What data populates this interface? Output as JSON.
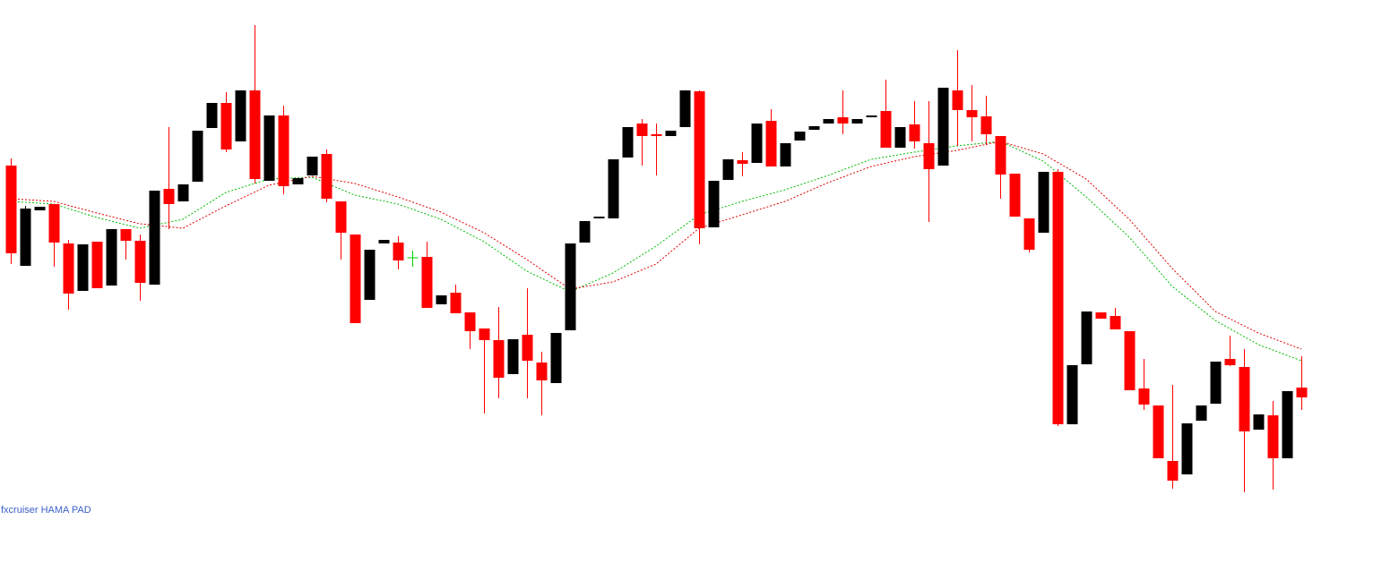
{
  "chart_data": {
    "type": "candlestick",
    "annotation": "fxcruiser HAMA PAD",
    "x": [
      0,
      1,
      2,
      3,
      4,
      5,
      6,
      7,
      8,
      9,
      10,
      11,
      12,
      13,
      14,
      15,
      16,
      17,
      18,
      19,
      20,
      21,
      22,
      23,
      24,
      25,
      26,
      27,
      28,
      29,
      30,
      31,
      32,
      33,
      34,
      35,
      36,
      37,
      38,
      39,
      40,
      41,
      42,
      43,
      44,
      45,
      46,
      47,
      48,
      49,
      50,
      51,
      52,
      53,
      54,
      55,
      56,
      57,
      58,
      59,
      60,
      61,
      62,
      63,
      64,
      65,
      66,
      67,
      68,
      69,
      70,
      71,
      72,
      73,
      74,
      75,
      76,
      77,
      78,
      79,
      80,
      81,
      82,
      83,
      84,
      85,
      86,
      87,
      88,
      89,
      90
    ],
    "open": [
      444,
      332,
      394,
      401,
      357,
      304,
      359,
      310,
      373,
      360,
      311,
      418,
      404,
      426,
      486,
      514,
      471,
      528,
      427,
      500,
      423,
      433,
      457,
      404,
      367,
      294,
      357,
      358,
      341,
      342,
      289,
      302,
      280,
      262,
      249,
      211,
      255,
      224,
      201,
      260,
      358,
      385,
      385,
      453,
      491,
      479,
      477,
      487,
      527,
      375,
      428,
      450,
      447,
      494,
      443,
      472,
      484,
      491,
      498,
      491,
      498,
      505,
      464,
      490,
      469,
      444,
      528,
      506,
      499,
      477,
      435,
      385,
      369,
      437,
      155,
      222,
      280,
      276,
      259,
      195,
      176,
      114,
      99,
      159,
      178,
      228,
      219,
      149,
      165,
      117,
      196
    ],
    "high": [
      452,
      399,
      398,
      401,
      361,
      356,
      359,
      373,
      373,
      367,
      416,
      487,
      423,
      483,
      514,
      526,
      528,
      601,
      500,
      511,
      430,
      454,
      462,
      404,
      367,
      350,
      361,
      365,
      349,
      359,
      299,
      311,
      280,
      262,
      286,
      250,
      307,
      236,
      257,
      357,
      382,
      387,
      451,
      487,
      496,
      491,
      483,
      528,
      528,
      427,
      451,
      459,
      491,
      507,
      469,
      482,
      488,
      496,
      528,
      496,
      500,
      540,
      487,
      516,
      516,
      531,
      573,
      534,
      522,
      477,
      435,
      385,
      437,
      440,
      221,
      281,
      280,
      285,
      259,
      228,
      176,
      199,
      156,
      176,
      225,
      254,
      239,
      166,
      181,
      192,
      231
    ],
    "low": [
      334,
      332,
      394,
      331,
      283,
      304,
      307,
      310,
      339,
      293,
      311,
      373,
      404,
      426,
      486,
      459,
      471,
      424,
      427,
      412,
      423,
      433,
      403,
      339,
      268,
      294,
      357,
      328,
      331,
      285,
      289,
      279,
      239,
      167,
      184,
      211,
      184,
      165,
      201,
      260,
      358,
      385,
      385,
      453,
      444,
      433,
      477,
      487,
      356,
      375,
      428,
      432,
      447,
      443,
      443,
      472,
      484,
      491,
      479,
      491,
      498,
      464,
      464,
      463,
      381,
      444,
      466,
      471,
      467,
      407,
      387,
      347,
      369,
      153,
      155,
      222,
      273,
      261,
      193,
      171,
      117,
      83,
      99,
      159,
      178,
      220,
      79,
      149,
      82,
      117,
      171
    ],
    "close": [
      346,
      396,
      398,
      358,
      301,
      356,
      307,
      373,
      360,
      313,
      416,
      401,
      423,
      483,
      514,
      462,
      528,
      429,
      500,
      421,
      430,
      454,
      407,
      369,
      268,
      350,
      361,
      338,
      341,
      285,
      299,
      279,
      259,
      249,
      207,
      250,
      226,
      204,
      257,
      357,
      382,
      387,
      451,
      487,
      477,
      477,
      483,
      528,
      374,
      427,
      451,
      446,
      491,
      443,
      469,
      482,
      488,
      496,
      491,
      496,
      500,
      464,
      487,
      471,
      440,
      531,
      506,
      498,
      479,
      434,
      387,
      350,
      437,
      155,
      221,
      281,
      273,
      261,
      193,
      177,
      117,
      92,
      156,
      176,
      225,
      221,
      147,
      166,
      117,
      192,
      185
    ],
    "up_color": "#000000",
    "down_color": "#ff0000",
    "doji_color": "#00cc00",
    "series": [
      {
        "color": "#00bb00",
        "x": [
          0,
          3,
          6,
          9,
          12,
          15,
          18,
          21,
          24,
          27,
          30,
          33,
          36,
          39,
          42,
          45,
          48,
          51,
          54,
          57,
          60,
          63,
          66,
          69,
          72,
          75,
          78,
          81,
          84,
          87,
          90
        ],
        "values": [
          404,
          401,
          386,
          374,
          384,
          414,
          429,
          431,
          411,
          401,
          384,
          359,
          326,
          303,
          324,
          354,
          389,
          404,
          417,
          433,
          451,
          459,
          466,
          471,
          449,
          409,
          364,
          309,
          271,
          244,
          226
        ]
      },
      {
        "color": "#e00000",
        "x": [
          0,
          3,
          6,
          9,
          12,
          15,
          18,
          21,
          24,
          27,
          30,
          33,
          36,
          39,
          42,
          45,
          48,
          51,
          54,
          57,
          60,
          63,
          66,
          69,
          72,
          75,
          78,
          81,
          84,
          87,
          90
        ],
        "values": [
          407,
          404,
          391,
          379,
          374,
          399,
          422,
          432,
          424,
          409,
          392,
          369,
          339,
          306,
          314,
          334,
          374,
          389,
          404,
          425,
          443,
          454,
          461,
          471,
          457,
          429,
          384,
          329,
          281,
          257,
          239
        ]
      }
    ],
    "xlim": [
      -0.75,
      96.8125
    ],
    "ylim": [
      0,
      629
    ]
  }
}
